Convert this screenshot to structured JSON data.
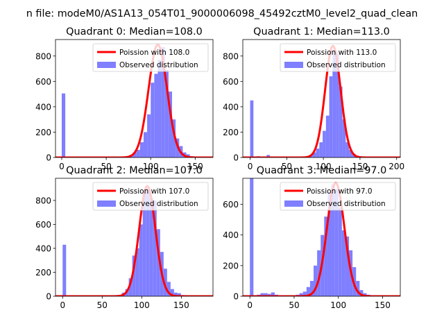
{
  "figure": {
    "suptitle": "n file: modeM0/AS1A13_054T01_9000006098_45492cztM0_level2_quad_clean",
    "colors": {
      "hist": "#7f7fff",
      "poisson": "#ff0000",
      "axis": "#000000",
      "background": "#ffffff"
    }
  },
  "chart_data": [
    {
      "type": "histogram",
      "title": "Quadrant 0: Median=108.0",
      "median": 108,
      "xlim": [
        -7,
        170
      ],
      "ylim": [
        0,
        930
      ],
      "xticks": [
        0,
        50,
        100,
        150
      ],
      "yticks": [
        0,
        200,
        400,
        600,
        800
      ],
      "legend": {
        "placement": "upper right",
        "entries": [
          "Poission with 108.0",
          "Observed distribution"
        ]
      },
      "hist": {
        "bin_width": 4,
        "x": [
          0,
          4,
          8,
          12,
          16,
          20,
          24,
          28,
          32,
          36,
          40,
          44,
          48,
          52,
          56,
          60,
          64,
          68,
          72,
          76,
          80,
          84,
          88,
          92,
          96,
          100,
          104,
          108,
          112,
          116,
          120,
          124,
          128,
          132,
          136,
          140,
          144,
          148,
          152,
          156,
          160,
          164
        ],
        "counts": [
          505,
          5,
          5,
          5,
          5,
          5,
          5,
          5,
          5,
          5,
          5,
          5,
          5,
          5,
          5,
          5,
          5,
          5,
          10,
          20,
          40,
          60,
          120,
          200,
          340,
          590,
          660,
          770,
          870,
          690,
          520,
          300,
          150,
          90,
          40,
          25,
          10,
          5,
          5,
          0,
          0,
          0
        ]
      },
      "poisson_peak": 890
    },
    {
      "type": "histogram",
      "title": "Quadrant 1: Median=113.0",
      "median": 113,
      "xlim": [
        -10,
        205
      ],
      "ylim": [
        0,
        930
      ],
      "xticks": [
        0,
        50,
        100,
        150,
        200
      ],
      "yticks": [
        0,
        200,
        400,
        600,
        800
      ],
      "legend": {
        "placement": "upper right",
        "entries": [
          "Poission with 113.0",
          "Observed distribution"
        ]
      },
      "hist": {
        "bin_width": 4.5,
        "x": [
          0,
          4.5,
          9,
          13.5,
          18,
          22.5,
          27,
          31.5,
          36,
          40.5,
          45,
          49.5,
          54,
          58.5,
          63,
          67.5,
          72,
          76.5,
          81,
          85.5,
          90,
          94.5,
          99,
          103.5,
          108,
          112.5,
          117,
          121.5,
          126,
          130.5,
          135,
          139.5,
          144,
          148.5,
          153,
          157.5,
          162,
          166.5,
          171,
          175.5,
          180,
          184.5,
          189
        ],
        "counts": [
          450,
          5,
          10,
          5,
          5,
          20,
          5,
          5,
          5,
          5,
          5,
          5,
          5,
          5,
          5,
          5,
          5,
          10,
          20,
          40,
          70,
          120,
          210,
          330,
          640,
          850,
          820,
          560,
          300,
          120,
          60,
          30,
          15,
          10,
          5,
          5,
          5,
          5,
          5,
          5,
          5,
          0,
          0
        ]
      },
      "poisson_peak": 880
    },
    {
      "type": "histogram",
      "title": "Quadrant 2: Median=107.0",
      "median": 107,
      "xlim": [
        -9,
        190
      ],
      "ylim": [
        0,
        985
      ],
      "xticks": [
        0,
        50,
        100,
        150
      ],
      "yticks": [
        0,
        200,
        400,
        600,
        800
      ],
      "legend": {
        "placement": "upper right",
        "entries": [
          "Poission with 107.0",
          "Observed distribution"
        ]
      },
      "hist": {
        "bin_width": 4.4,
        "x": [
          0,
          4.4,
          8.8,
          13.2,
          17.6,
          22,
          26.4,
          30.8,
          35.2,
          39.6,
          44,
          48.4,
          52.8,
          57.2,
          61.6,
          66,
          70.4,
          74.8,
          79.2,
          83.6,
          88,
          92.4,
          96.8,
          101.2,
          105.6,
          110,
          114.4,
          118.8,
          123.2,
          127.6,
          132,
          136.4,
          140.8,
          145.2,
          149.6,
          154,
          158.4,
          162.8,
          167.2,
          171.6,
          176
        ],
        "counts": [
          430,
          5,
          5,
          5,
          5,
          5,
          5,
          5,
          5,
          5,
          5,
          5,
          5,
          5,
          5,
          5,
          10,
          30,
          60,
          150,
          340,
          400,
          600,
          870,
          900,
          820,
          800,
          560,
          370,
          230,
          120,
          60,
          30,
          25,
          10,
          5,
          5,
          5,
          0,
          0,
          0
        ]
      },
      "poisson_peak": 920
    },
    {
      "type": "histogram",
      "title": "Quadrant 3: Median=97.0",
      "median": 97,
      "xlim": [
        -8,
        170
      ],
      "ylim": [
        0,
        770
      ],
      "xticks": [
        0,
        50,
        100,
        150
      ],
      "yticks": [
        0,
        200,
        400,
        600
      ],
      "legend": {
        "placement": "upper right",
        "entries": [
          "Poission with 97.0",
          "Observed distribution"
        ]
      },
      "hist": {
        "bin_width": 4,
        "x": [
          0,
          4,
          8,
          12,
          16,
          20,
          24,
          28,
          32,
          36,
          40,
          44,
          48,
          52,
          56,
          60,
          64,
          68,
          72,
          76,
          80,
          84,
          88,
          92,
          96,
          100,
          104,
          108,
          112,
          116,
          120,
          124,
          128,
          132,
          136,
          140,
          144,
          148,
          152
        ],
        "counts": [
          770,
          5,
          10,
          20,
          20,
          15,
          25,
          10,
          5,
          5,
          5,
          5,
          5,
          10,
          20,
          30,
          60,
          100,
          200,
          300,
          400,
          520,
          680,
          730,
          700,
          580,
          430,
          390,
          300,
          190,
          100,
          40,
          20,
          10,
          5,
          5,
          0,
          0,
          0
        ]
      },
      "poisson_peak": 740
    }
  ]
}
